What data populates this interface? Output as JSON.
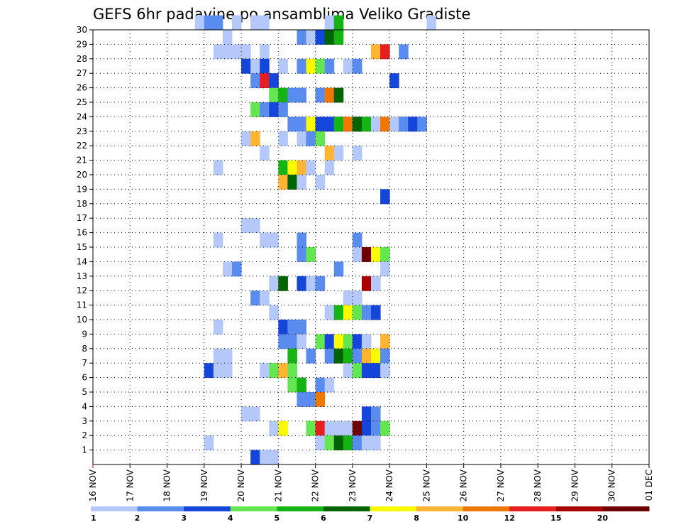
{
  "chart_data": {
    "type": "heatmap",
    "title": "GEFS 6hr padavine po ansamblima Veliko Gradiste",
    "x_tick_labels": [
      "16 NOV",
      "17 NOV",
      "18 NOV",
      "19 NOV",
      "20 NOV",
      "21 NOV",
      "22 NOV",
      "23 NOV",
      "24 NOV",
      "25 NOV",
      "26 NOV",
      "27 NOV",
      "28 NOV",
      "29 NOV",
      "30 NOV",
      "01 DEC"
    ],
    "y_tick_labels": [
      "1",
      "2",
      "3",
      "4",
      "5",
      "6",
      "7",
      "8",
      "9",
      "10",
      "11",
      "12",
      "13",
      "14",
      "15",
      "16",
      "17",
      "18",
      "19",
      "20",
      "21",
      "22",
      "23",
      "24",
      "25",
      "26",
      "27",
      "28",
      "29",
      "30"
    ],
    "grid": true,
    "legend": {
      "position": "bottom",
      "labels": [
        "1",
        "2",
        "3",
        "4",
        "5",
        "6",
        "7",
        "8",
        "10",
        "12",
        "15",
        "20"
      ],
      "colors": [
        "#b4c8fa",
        "#5a8cf0",
        "#1446dc",
        "#64e650",
        "#14b414",
        "#006400",
        "#fafa00",
        "#ffb432",
        "#f07800",
        "#e61e1e",
        "#aa0000",
        "#6e0000"
      ]
    },
    "cells": [
      [
        30,
        1,
        "#b4c8fa"
      ],
      [
        30,
        2,
        "#5a8cf0"
      ],
      [
        30,
        3,
        "#5a8cf0"
      ],
      [
        30,
        5,
        "#b4c8fa"
      ],
      [
        30,
        7,
        "#b4c8fa"
      ],
      [
        30,
        8,
        "#b4c8fa"
      ],
      [
        30,
        15,
        "#b4c8fa"
      ],
      [
        30,
        16,
        "#14b414"
      ],
      [
        30,
        26,
        "#b4c8fa"
      ],
      [
        29,
        4,
        "#b4c8fa"
      ],
      [
        29,
        12,
        "#5a8cf0"
      ],
      [
        29,
        13,
        "#b4c8fa"
      ],
      [
        29,
        14,
        "#1446dc"
      ],
      [
        29,
        15,
        "#006400"
      ],
      [
        29,
        16,
        "#14b414"
      ],
      [
        28,
        3,
        "#b4c8fa"
      ],
      [
        28,
        4,
        "#b4c8fa"
      ],
      [
        28,
        5,
        "#b4c8fa"
      ],
      [
        28,
        6,
        "#b4c8fa"
      ],
      [
        28,
        8,
        "#b4c8fa"
      ],
      [
        28,
        20,
        "#ffb432"
      ],
      [
        28,
        21,
        "#e61e1e"
      ],
      [
        28,
        23,
        "#5a8cf0"
      ],
      [
        27,
        6,
        "#1446dc"
      ],
      [
        27,
        7,
        "#b4c8fa"
      ],
      [
        27,
        8,
        "#1446dc"
      ],
      [
        27,
        10,
        "#b4c8fa"
      ],
      [
        27,
        12,
        "#5a8cf0"
      ],
      [
        27,
        13,
        "#fafa00"
      ],
      [
        27,
        14,
        "#64e650"
      ],
      [
        27,
        15,
        "#5a8cf0"
      ],
      [
        27,
        17,
        "#b4c8fa"
      ],
      [
        27,
        18,
        "#5a8cf0"
      ],
      [
        26,
        7,
        "#5a8cf0"
      ],
      [
        26,
        8,
        "#e61e1e"
      ],
      [
        26,
        9,
        "#1446dc"
      ],
      [
        26,
        22,
        "#1446dc"
      ],
      [
        25,
        9,
        "#64e650"
      ],
      [
        25,
        10,
        "#14b414"
      ],
      [
        25,
        11,
        "#5a8cf0"
      ],
      [
        25,
        12,
        "#5a8cf0"
      ],
      [
        25,
        14,
        "#5a8cf0"
      ],
      [
        25,
        15,
        "#f07800"
      ],
      [
        25,
        16,
        "#006400"
      ],
      [
        24,
        7,
        "#64e650"
      ],
      [
        24,
        8,
        "#5a8cf0"
      ],
      [
        24,
        9,
        "#1446dc"
      ],
      [
        24,
        10,
        "#5a8cf0"
      ],
      [
        23,
        11,
        "#5a8cf0"
      ],
      [
        23,
        12,
        "#5a8cf0"
      ],
      [
        23,
        13,
        "#fafa00"
      ],
      [
        23,
        14,
        "#1446dc"
      ],
      [
        23,
        15,
        "#1446dc"
      ],
      [
        23,
        16,
        "#14b414"
      ],
      [
        23,
        17,
        "#f07800"
      ],
      [
        23,
        18,
        "#006400"
      ],
      [
        23,
        19,
        "#14b414"
      ],
      [
        23,
        20,
        "#b4c8fa"
      ],
      [
        23,
        21,
        "#f07800"
      ],
      [
        23,
        22,
        "#b4c8fa"
      ],
      [
        23,
        23,
        "#5a8cf0"
      ],
      [
        23,
        24,
        "#1446dc"
      ],
      [
        23,
        25,
        "#5a8cf0"
      ],
      [
        22,
        6,
        "#b4c8fa"
      ],
      [
        22,
        7,
        "#ffb432"
      ],
      [
        22,
        10,
        "#b4c8fa"
      ],
      [
        22,
        12,
        "#b4c8fa"
      ],
      [
        22,
        13,
        "#5a8cf0"
      ],
      [
        22,
        14,
        "#64e650"
      ],
      [
        21,
        8,
        "#b4c8fa"
      ],
      [
        21,
        15,
        "#ffb432"
      ],
      [
        21,
        16,
        "#b4c8fa"
      ],
      [
        21,
        18,
        "#b4c8fa"
      ],
      [
        20,
        3,
        "#b4c8fa"
      ],
      [
        20,
        10,
        "#14b414"
      ],
      [
        20,
        11,
        "#fafa00"
      ],
      [
        20,
        12,
        "#ffb432"
      ],
      [
        20,
        13,
        "#b4c8fa"
      ],
      [
        20,
        15,
        "#b4c8fa"
      ],
      [
        19,
        10,
        "#ffb432"
      ],
      [
        19,
        11,
        "#006400"
      ],
      [
        19,
        12,
        "#b4c8fa"
      ],
      [
        19,
        14,
        "#b4c8fa"
      ],
      [
        18,
        21,
        "#1446dc"
      ],
      [
        16,
        6,
        "#b4c8fa"
      ],
      [
        16,
        7,
        "#b4c8fa"
      ],
      [
        15,
        3,
        "#b4c8fa"
      ],
      [
        15,
        8,
        "#b4c8fa"
      ],
      [
        15,
        9,
        "#b4c8fa"
      ],
      [
        15,
        12,
        "#5a8cf0"
      ],
      [
        15,
        18,
        "#5a8cf0"
      ],
      [
        14,
        12,
        "#5a8cf0"
      ],
      [
        14,
        13,
        "#64e650"
      ],
      [
        14,
        18,
        "#b4c8fa"
      ],
      [
        14,
        19,
        "#6e0000"
      ],
      [
        14,
        20,
        "#fafa00"
      ],
      [
        14,
        21,
        "#64e650"
      ],
      [
        13,
        4,
        "#b4c8fa"
      ],
      [
        13,
        5,
        "#5a8cf0"
      ],
      [
        13,
        16,
        "#5a8cf0"
      ],
      [
        13,
        21,
        "#b4c8fa"
      ],
      [
        12,
        9,
        "#b4c8fa"
      ],
      [
        12,
        10,
        "#006400"
      ],
      [
        12,
        12,
        "#1446dc"
      ],
      [
        12,
        13,
        "#b4c8fa"
      ],
      [
        12,
        14,
        "#5a8cf0"
      ],
      [
        12,
        19,
        "#aa0000"
      ],
      [
        12,
        20,
        "#b4c8fa"
      ],
      [
        11,
        7,
        "#5a8cf0"
      ],
      [
        11,
        8,
        "#b4c8fa"
      ],
      [
        11,
        17,
        "#b4c8fa"
      ],
      [
        11,
        18,
        "#b4c8fa"
      ],
      [
        10,
        9,
        "#b4c8fa"
      ],
      [
        10,
        15,
        "#b4c8fa"
      ],
      [
        10,
        16,
        "#14b414"
      ],
      [
        10,
        17,
        "#fafa00"
      ],
      [
        10,
        18,
        "#64e650"
      ],
      [
        10,
        19,
        "#5a8cf0"
      ],
      [
        10,
        20,
        "#1446dc"
      ],
      [
        9,
        3,
        "#b4c8fa"
      ],
      [
        9,
        10,
        "#1446dc"
      ],
      [
        9,
        11,
        "#5a8cf0"
      ],
      [
        9,
        12,
        "#5a8cf0"
      ],
      [
        8,
        10,
        "#5a8cf0"
      ],
      [
        8,
        11,
        "#5a8cf0"
      ],
      [
        8,
        12,
        "#b4c8fa"
      ],
      [
        8,
        14,
        "#64e650"
      ],
      [
        8,
        15,
        "#1446dc"
      ],
      [
        8,
        16,
        "#fafa00"
      ],
      [
        8,
        17,
        "#64e650"
      ],
      [
        8,
        18,
        "#1446dc"
      ],
      [
        8,
        19,
        "#b4c8fa"
      ],
      [
        8,
        21,
        "#ffb432"
      ],
      [
        7,
        3,
        "#b4c8fa"
      ],
      [
        7,
        4,
        "#b4c8fa"
      ],
      [
        7,
        11,
        "#14b414"
      ],
      [
        7,
        13,
        "#5a8cf0"
      ],
      [
        7,
        15,
        "#5a8cf0"
      ],
      [
        7,
        16,
        "#006400"
      ],
      [
        7,
        17,
        "#14b414"
      ],
      [
        7,
        18,
        "#5a8cf0"
      ],
      [
        7,
        19,
        "#ffb432"
      ],
      [
        7,
        20,
        "#fafa00"
      ],
      [
        7,
        21,
        "#5a8cf0"
      ],
      [
        6,
        2,
        "#1446dc"
      ],
      [
        6,
        3,
        "#b4c8fa"
      ],
      [
        6,
        4,
        "#b4c8fa"
      ],
      [
        6,
        8,
        "#b4c8fa"
      ],
      [
        6,
        9,
        "#64e650"
      ],
      [
        6,
        10,
        "#ffb432"
      ],
      [
        6,
        11,
        "#64e650"
      ],
      [
        6,
        17,
        "#b4c8fa"
      ],
      [
        6,
        18,
        "#64e650"
      ],
      [
        6,
        19,
        "#1446dc"
      ],
      [
        6,
        20,
        "#1446dc"
      ],
      [
        6,
        21,
        "#b4c8fa"
      ],
      [
        5,
        11,
        "#64e650"
      ],
      [
        5,
        12,
        "#14b414"
      ],
      [
        5,
        14,
        "#5a8cf0"
      ],
      [
        5,
        15,
        "#b4c8fa"
      ],
      [
        4,
        12,
        "#5a8cf0"
      ],
      [
        4,
        13,
        "#5a8cf0"
      ],
      [
        4,
        14,
        "#f07800"
      ],
      [
        3,
        6,
        "#b4c8fa"
      ],
      [
        3,
        7,
        "#b4c8fa"
      ],
      [
        3,
        19,
        "#1446dc"
      ],
      [
        3,
        20,
        "#5a8cf0"
      ],
      [
        2,
        9,
        "#b4c8fa"
      ],
      [
        2,
        10,
        "#fafa00"
      ],
      [
        2,
        13,
        "#64e650"
      ],
      [
        2,
        14,
        "#e61e1e"
      ],
      [
        2,
        15,
        "#b4c8fa"
      ],
      [
        2,
        16,
        "#b4c8fa"
      ],
      [
        2,
        17,
        "#b4c8fa"
      ],
      [
        2,
        18,
        "#6e0000"
      ],
      [
        2,
        19,
        "#1446dc"
      ],
      [
        2,
        20,
        "#5a8cf0"
      ],
      [
        2,
        21,
        "#64e650"
      ],
      [
        1,
        2,
        "#b4c8fa"
      ],
      [
        1,
        14,
        "#b4c8fa"
      ],
      [
        1,
        15,
        "#64e650"
      ],
      [
        1,
        16,
        "#006400"
      ],
      [
        1,
        17,
        "#14b414"
      ],
      [
        1,
        18,
        "#5a8cf0"
      ],
      [
        1,
        19,
        "#b4c8fa"
      ],
      [
        1,
        20,
        "#b4c8fa"
      ],
      [
        0,
        7,
        "#1446dc"
      ],
      [
        0,
        8,
        "#b4c8fa"
      ],
      [
        0,
        9,
        "#b4c8fa"
      ]
    ]
  }
}
